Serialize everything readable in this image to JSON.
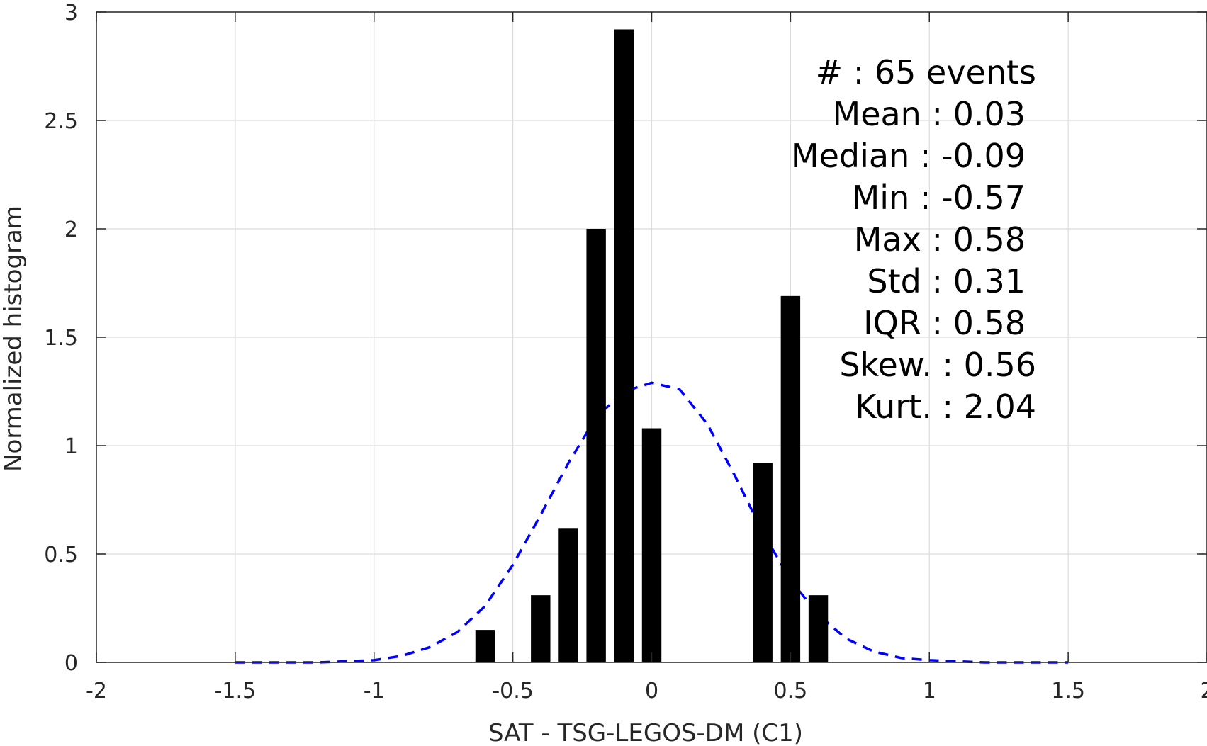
{
  "chart_data": {
    "type": "bar",
    "title": "",
    "xlabel": "SAT - TSG-LEGOS-DM (C1)",
    "ylabel": "Normalized histogram",
    "xlim": [
      -2,
      2
    ],
    "ylim": [
      0,
      3
    ],
    "grid": true,
    "xticks": [
      -2,
      -1.5,
      -1,
      -0.5,
      0,
      0.5,
      1,
      1.5,
      2
    ],
    "xtick_labels": [
      "-2",
      "-1.5",
      "-1",
      "-0.5",
      "0",
      "0.5",
      "1",
      "1.5",
      "2"
    ],
    "yticks": [
      0,
      0.5,
      1,
      1.5,
      2,
      2.5,
      3
    ],
    "ytick_labels": [
      "0",
      "0.5",
      "1",
      "1.5",
      "2",
      "2.5",
      "3"
    ],
    "bar_width": 0.07,
    "bars": [
      {
        "x": -0.6,
        "y": 0.15
      },
      {
        "x": -0.4,
        "y": 0.31
      },
      {
        "x": -0.3,
        "y": 0.62
      },
      {
        "x": -0.2,
        "y": 2.0
      },
      {
        "x": -0.1,
        "y": 2.92
      },
      {
        "x": 0.0,
        "y": 1.08
      },
      {
        "x": 0.4,
        "y": 0.92
      },
      {
        "x": 0.5,
        "y": 1.69
      },
      {
        "x": 0.6,
        "y": 0.31
      }
    ],
    "fit_curve": {
      "style": "dashed",
      "color": "#0000ff",
      "x": [
        -1.5,
        -1.2,
        -1.0,
        -0.9,
        -0.8,
        -0.7,
        -0.6,
        -0.5,
        -0.4,
        -0.3,
        -0.2,
        -0.1,
        0.0,
        0.1,
        0.2,
        0.3,
        0.4,
        0.5,
        0.6,
        0.7,
        0.8,
        0.9,
        1.0,
        1.2,
        1.5
      ],
      "y": [
        0.0,
        0.0,
        0.01,
        0.03,
        0.07,
        0.14,
        0.26,
        0.45,
        0.68,
        0.92,
        1.13,
        1.25,
        1.29,
        1.26,
        1.1,
        0.86,
        0.6,
        0.38,
        0.22,
        0.11,
        0.05,
        0.02,
        0.01,
        0.0,
        0.0
      ]
    },
    "stats": [
      "#  : 65 events",
      "Mean : 0.03",
      "Median : -0.09",
      "Min : -0.57",
      "Max : 0.58",
      "Std : 0.31",
      "IQR : 0.58",
      "Skew. : 0.56",
      "Kurt. : 2.04"
    ],
    "colors": {
      "bars": "#000000",
      "grid": "#dcdcdc",
      "axis": "#262626"
    }
  }
}
